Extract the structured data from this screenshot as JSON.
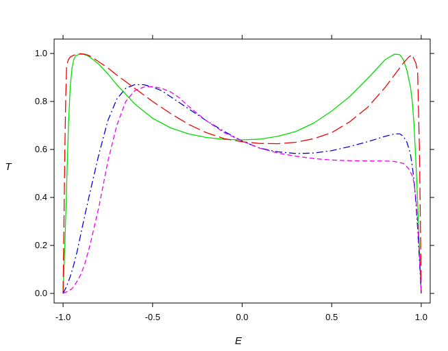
{
  "chart_data": {
    "type": "line",
    "title": "",
    "xlabel": "E",
    "ylabel": "T",
    "xlim": [
      -1.05,
      1.05
    ],
    "ylim": [
      -0.04,
      1.06
    ],
    "grid": false,
    "legend": "none",
    "x_ticks": [
      -1.0,
      -0.5,
      0.0,
      0.5,
      1.0
    ],
    "x_tick_labels": [
      "-1.0",
      "-0.5",
      "0.0",
      "0.5",
      "1.0"
    ],
    "y_ticks": [
      0.0,
      0.2,
      0.4,
      0.6,
      0.8,
      1.0
    ],
    "y_tick_labels": [
      "0.0",
      "0.2",
      "0.4",
      "0.6",
      "0.8",
      "1.0"
    ],
    "series": [
      {
        "color": "#00dd00",
        "dash": "solid",
        "x": [
          -1.0,
          -0.99,
          -0.98,
          -0.97,
          -0.96,
          -0.95,
          -0.94,
          -0.93,
          -0.91,
          -0.89,
          -0.87,
          -0.85,
          -0.8,
          -0.75,
          -0.7,
          -0.6,
          -0.5,
          -0.4,
          -0.3,
          -0.2,
          -0.1,
          0.0,
          0.1,
          0.2,
          0.3,
          0.4,
          0.5,
          0.6,
          0.7,
          0.8,
          0.85,
          0.88,
          0.9,
          0.92,
          0.94,
          0.95,
          0.96,
          0.97,
          0.98,
          0.99,
          1.0
        ],
        "y": [
          0.0,
          0.2,
          0.45,
          0.7,
          0.86,
          0.94,
          0.975,
          0.99,
          0.997,
          0.997,
          0.993,
          0.985,
          0.955,
          0.915,
          0.87,
          0.79,
          0.73,
          0.69,
          0.665,
          0.65,
          0.642,
          0.64,
          0.643,
          0.655,
          0.675,
          0.71,
          0.76,
          0.82,
          0.895,
          0.975,
          0.997,
          0.995,
          0.975,
          0.93,
          0.86,
          0.8,
          0.7,
          0.55,
          0.38,
          0.18,
          0.0
        ]
      },
      {
        "color": "#ee0000",
        "dash": "long-dash",
        "x": [
          -1.0,
          -0.995,
          -0.99,
          -0.985,
          -0.98,
          -0.97,
          -0.96,
          -0.94,
          -0.92,
          -0.9,
          -0.88,
          -0.86,
          -0.84,
          -0.8,
          -0.75,
          -0.7,
          -0.6,
          -0.5,
          -0.4,
          -0.3,
          -0.2,
          -0.1,
          0.0,
          0.1,
          0.2,
          0.3,
          0.4,
          0.5,
          0.6,
          0.7,
          0.8,
          0.85,
          0.9,
          0.93,
          0.95,
          0.96,
          0.97,
          0.98,
          0.99,
          0.995,
          1.0
        ],
        "y": [
          0.0,
          0.3,
          0.6,
          0.82,
          0.95,
          0.975,
          0.985,
          0.993,
          0.998,
          0.999,
          0.997,
          0.993,
          0.985,
          0.965,
          0.94,
          0.91,
          0.855,
          0.8,
          0.75,
          0.705,
          0.67,
          0.645,
          0.632,
          0.625,
          0.624,
          0.63,
          0.645,
          0.67,
          0.715,
          0.775,
          0.86,
          0.91,
          0.96,
          0.985,
          0.995,
          0.975,
          0.96,
          0.92,
          0.6,
          0.3,
          0.0
        ]
      },
      {
        "color": "#0000dd",
        "dash": "dash-dot",
        "x": [
          -1.0,
          -0.98,
          -0.96,
          -0.94,
          -0.92,
          -0.9,
          -0.88,
          -0.85,
          -0.8,
          -0.75,
          -0.7,
          -0.65,
          -0.6,
          -0.55,
          -0.5,
          -0.45,
          -0.4,
          -0.3,
          -0.2,
          -0.1,
          0.0,
          0.1,
          0.2,
          0.3,
          0.4,
          0.5,
          0.6,
          0.7,
          0.8,
          0.85,
          0.88,
          0.9,
          0.92,
          0.94,
          0.95,
          0.96,
          0.97,
          0.98,
          0.99,
          1.0
        ],
        "y": [
          0.0,
          0.03,
          0.07,
          0.12,
          0.18,
          0.25,
          0.32,
          0.42,
          0.58,
          0.72,
          0.81,
          0.855,
          0.87,
          0.87,
          0.86,
          0.845,
          0.82,
          0.77,
          0.72,
          0.675,
          0.635,
          0.605,
          0.59,
          0.583,
          0.585,
          0.595,
          0.612,
          0.632,
          0.655,
          0.665,
          0.665,
          0.655,
          0.63,
          0.58,
          0.53,
          0.47,
          0.38,
          0.27,
          0.14,
          0.0
        ]
      },
      {
        "color": "#ee00ee",
        "dash": "short-dash",
        "x": [
          -1.0,
          -0.97,
          -0.95,
          -0.93,
          -0.9,
          -0.88,
          -0.85,
          -0.8,
          -0.75,
          -0.7,
          -0.65,
          -0.6,
          -0.55,
          -0.5,
          -0.45,
          -0.4,
          -0.35,
          -0.3,
          -0.2,
          -0.1,
          0.0,
          0.1,
          0.2,
          0.3,
          0.4,
          0.5,
          0.6,
          0.7,
          0.8,
          0.85,
          0.9,
          0.93,
          0.95,
          0.96,
          0.97,
          0.98,
          0.99,
          1.0
        ],
        "y": [
          0.0,
          0.01,
          0.02,
          0.04,
          0.08,
          0.12,
          0.2,
          0.36,
          0.55,
          0.7,
          0.8,
          0.845,
          0.86,
          0.862,
          0.855,
          0.84,
          0.815,
          0.78,
          0.72,
          0.67,
          0.635,
          0.605,
          0.585,
          0.572,
          0.562,
          0.556,
          0.553,
          0.552,
          0.552,
          0.55,
          0.542,
          0.52,
          0.49,
          0.46,
          0.4,
          0.3,
          0.16,
          0.0
        ]
      }
    ]
  }
}
